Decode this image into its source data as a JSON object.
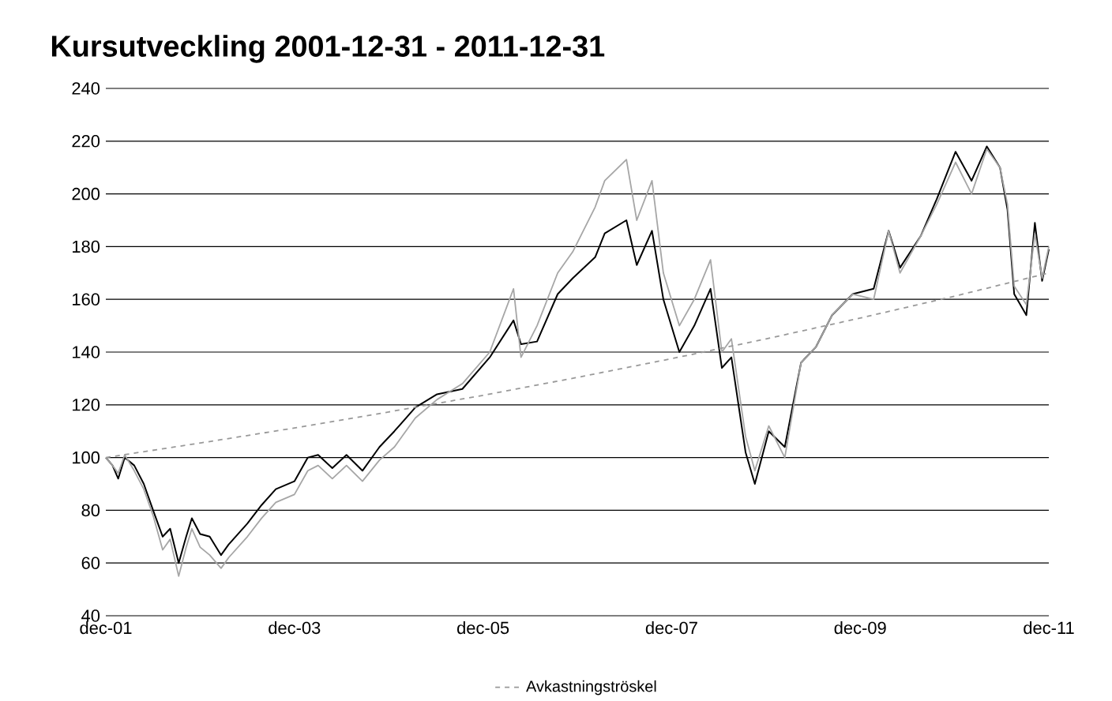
{
  "chart_data": {
    "type": "line",
    "title": "Kursutveckling 2001-12-31 - 2011-12-31",
    "xlim": [
      "2001-12-31",
      "2011-12-31"
    ],
    "xticks": [
      {
        "value": "2001-12-31",
        "label": "dec-01"
      },
      {
        "value": "2003-12-31",
        "label": "dec-03"
      },
      {
        "value": "2005-12-31",
        "label": "dec-05"
      },
      {
        "value": "2007-12-31",
        "label": "dec-07"
      },
      {
        "value": "2009-12-31",
        "label": "dec-09"
      },
      {
        "value": "2011-12-31",
        "label": "dec-11"
      }
    ],
    "ylim": [
      40,
      240
    ],
    "yticks": [
      40,
      60,
      80,
      100,
      120,
      140,
      160,
      180,
      200,
      220,
      240
    ],
    "grid": "y",
    "legend": "bottom",
    "x": [
      "2001-12-31",
      "2002-01-26",
      "2002-02-17",
      "2002-03-14",
      "2002-04-20",
      "2002-05-27",
      "2002-07-02",
      "2002-08-08",
      "2002-09-06",
      "2002-10-09",
      "2002-11-07",
      "2002-11-29",
      "2002-12-31",
      "2003-02-06",
      "2003-03-22",
      "2003-04-20",
      "2003-07-02",
      "2003-08-26",
      "2003-10-20",
      "2003-12-31",
      "2004-02-21",
      "2004-04-01",
      "2004-05-26",
      "2004-07-20",
      "2004-09-20",
      "2004-11-25",
      "2005-01-22",
      "2005-04-13",
      "2005-07-06",
      "2005-10-12",
      "2006-01-26",
      "2006-04-28",
      "2006-05-27",
      "2006-07-28",
      "2006-10-16",
      "2006-12-13",
      "2007-03-10",
      "2007-04-16",
      "2007-07-09",
      "2007-08-18",
      "2007-10-16",
      "2007-11-29",
      "2008-01-30",
      "2008-03-28",
      "2008-05-30",
      "2008-07-13",
      "2008-08-19",
      "2008-10-13",
      "2008-11-18",
      "2009-01-11",
      "2009-03-14",
      "2009-05-16",
      "2009-07-13",
      "2009-09-13",
      "2009-12-02",
      "2010-02-21",
      "2010-04-20",
      "2010-06-03",
      "2010-08-22",
      "2010-10-23",
      "2011-01-04",
      "2011-03-07",
      "2011-05-05",
      "2011-06-25",
      "2011-07-24",
      "2011-08-19",
      "2011-10-05",
      "2011-11-07",
      "2011-12-05",
      "2011-12-31"
    ],
    "series": [
      {
        "color": "#000000",
        "values": [
          100,
          97,
          92,
          100,
          97,
          90,
          80,
          70,
          73,
          60,
          70,
          77,
          71,
          70,
          63,
          67,
          75,
          82,
          88,
          91,
          100,
          101,
          96,
          101,
          95,
          104,
          110,
          119,
          124,
          126,
          138,
          152,
          143,
          144,
          162,
          168,
          176,
          185,
          190,
          173,
          186,
          160,
          140,
          150,
          164,
          134,
          138,
          102,
          90,
          110,
          104,
          136,
          142,
          154,
          162,
          164,
          186,
          172,
          184,
          198,
          216,
          205,
          218,
          210,
          194,
          162,
          154,
          189,
          167,
          179
        ]
      },
      {
        "color": "#a6a6a6",
        "values": [
          100,
          97,
          94,
          101,
          95,
          88,
          78,
          65,
          69,
          55,
          66,
          73,
          66,
          63,
          58,
          62,
          70,
          77,
          83,
          86,
          95,
          97,
          92,
          97,
          91,
          99,
          104,
          115,
          122,
          128,
          140,
          164,
          138,
          150,
          170,
          178,
          195,
          205,
          213,
          190,
          205,
          170,
          150,
          160,
          175,
          140,
          145,
          108,
          95,
          112,
          100,
          136,
          142,
          154,
          162,
          160,
          186,
          170,
          184,
          196,
          212,
          200,
          217,
          210,
          196,
          165,
          158,
          185,
          168,
          180
        ]
      },
      {
        "name": "Avkastningströskel",
        "color": "#999999",
        "line_style": "dashed",
        "x": [
          "2001-12-31",
          "2002-12-31",
          "2003-12-31",
          "2004-12-31",
          "2005-12-31",
          "2006-12-31",
          "2007-12-31",
          "2008-12-31",
          "2009-12-31",
          "2010-12-31",
          "2011-12-31"
        ],
        "values": [
          100,
          105.5,
          111.2,
          117.3,
          123.6,
          130.4,
          137.5,
          145,
          152.9,
          161.2,
          170
        ]
      }
    ]
  }
}
